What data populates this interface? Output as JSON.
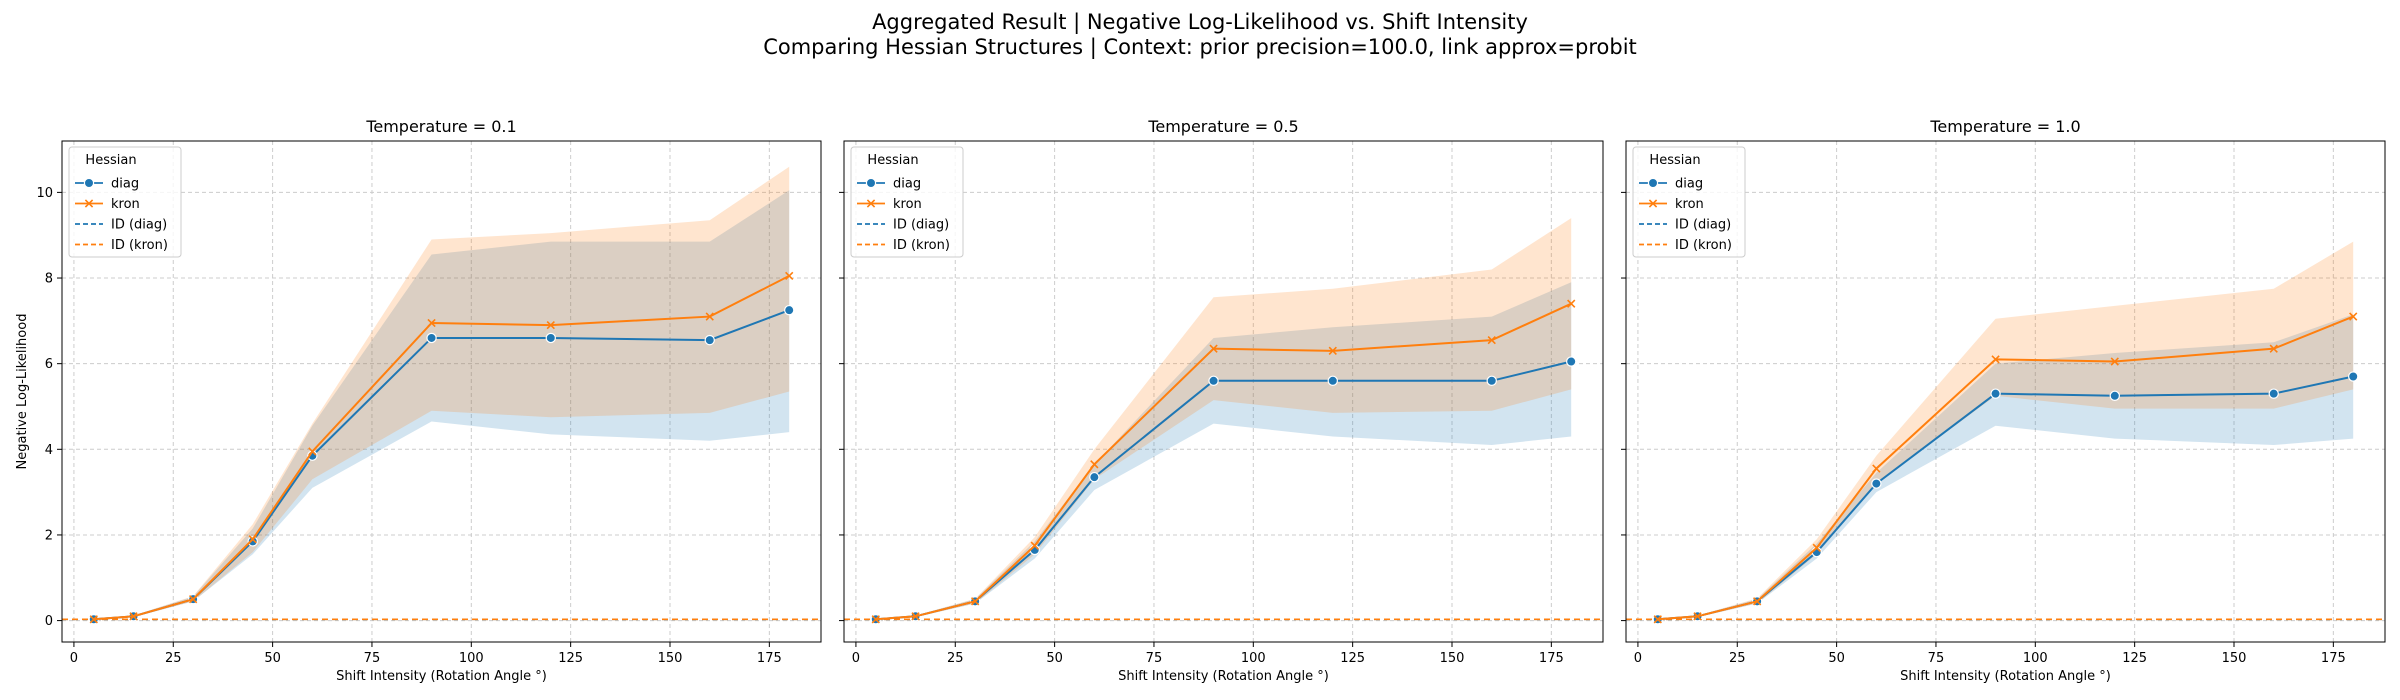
{
  "figure": {
    "title_line1": "Aggregated Result | Negative Log-Likelihood vs. Shift Intensity",
    "title_line2": "Comparing Hessian Structures | Context: prior precision=100.0, link approx=probit"
  },
  "colors": {
    "diag": "#1f77b4",
    "kron": "#ff7f0e",
    "grid": "#cccccc",
    "axes": "#000000"
  },
  "chart_data": [
    {
      "type": "line",
      "title": "Temperature = 0.1",
      "xlabel": "Shift Intensity (Rotation Angle °)",
      "ylabel": "Negative Log-Likelihood",
      "xlim": [
        -3,
        188
      ],
      "ylim": [
        -0.5,
        11.2
      ],
      "xticks": [
        0,
        25,
        50,
        75,
        100,
        125,
        150,
        175
      ],
      "yticks": [
        0,
        2,
        4,
        6,
        8,
        10
      ],
      "grid": true,
      "legend": {
        "title": "Hessian",
        "placement": "top-left",
        "entries": [
          "diag",
          "kron",
          "ID (diag)",
          "ID (kron)"
        ]
      },
      "x": [
        5,
        15,
        30,
        45,
        60,
        90,
        120,
        160,
        180
      ],
      "series": [
        {
          "name": "diag",
          "marker": "circle",
          "values": [
            0.03,
            0.1,
            0.5,
            1.85,
            3.85,
            6.6,
            6.6,
            6.55,
            7.25
          ],
          "ci_low": [
            0.02,
            0.08,
            0.45,
            1.55,
            3.1,
            4.65,
            4.35,
            4.2,
            4.4
          ],
          "ci_high": [
            0.04,
            0.12,
            0.56,
            2.15,
            4.55,
            8.55,
            8.85,
            8.85,
            10.05
          ]
        },
        {
          "name": "kron",
          "marker": "x",
          "values": [
            0.03,
            0.1,
            0.5,
            1.9,
            3.95,
            6.95,
            6.9,
            7.1,
            8.05
          ],
          "ci_low": [
            0.02,
            0.08,
            0.45,
            1.6,
            3.3,
            4.9,
            4.75,
            4.85,
            5.35
          ],
          "ci_high": [
            0.04,
            0.12,
            0.57,
            2.25,
            4.6,
            8.9,
            9.05,
            9.35,
            10.6
          ]
        }
      ],
      "id_lines": [
        {
          "name": "ID (diag)",
          "value": 0.03
        },
        {
          "name": "ID (kron)",
          "value": 0.03
        }
      ]
    },
    {
      "type": "line",
      "title": "Temperature = 0.5",
      "xlabel": "Shift Intensity (Rotation Angle °)",
      "ylabel": "",
      "xlim": [
        -3,
        188
      ],
      "ylim": [
        -0.5,
        11.2
      ],
      "xticks": [
        0,
        25,
        50,
        75,
        100,
        125,
        150,
        175
      ],
      "yticks": [
        0,
        2,
        4,
        6,
        8,
        10
      ],
      "grid": true,
      "legend": {
        "title": "Hessian",
        "placement": "top-left",
        "entries": [
          "diag",
          "kron",
          "ID (diag)",
          "ID (kron)"
        ]
      },
      "x": [
        5,
        15,
        30,
        45,
        60,
        90,
        120,
        160,
        180
      ],
      "series": [
        {
          "name": "diag",
          "marker": "circle",
          "values": [
            0.03,
            0.1,
            0.45,
            1.65,
            3.35,
            5.6,
            5.6,
            5.6,
            6.05
          ],
          "ci_low": [
            0.02,
            0.08,
            0.4,
            1.45,
            3.05,
            4.6,
            4.3,
            4.1,
            4.3
          ],
          "ci_high": [
            0.04,
            0.12,
            0.5,
            1.85,
            3.65,
            6.6,
            6.85,
            7.1,
            7.9
          ]
        },
        {
          "name": "kron",
          "marker": "x",
          "values": [
            0.03,
            0.1,
            0.45,
            1.75,
            3.65,
            6.35,
            6.3,
            6.55,
            7.4
          ],
          "ci_low": [
            0.02,
            0.08,
            0.4,
            1.55,
            3.3,
            5.15,
            4.85,
            4.9,
            5.4
          ],
          "ci_high": [
            0.04,
            0.12,
            0.51,
            1.95,
            4.0,
            7.55,
            7.75,
            8.2,
            9.4
          ]
        }
      ],
      "id_lines": [
        {
          "name": "ID (diag)",
          "value": 0.03
        },
        {
          "name": "ID (kron)",
          "value": 0.03
        }
      ]
    },
    {
      "type": "line",
      "title": "Temperature = 1.0",
      "xlabel": "Shift Intensity (Rotation Angle °)",
      "ylabel": "",
      "xlim": [
        -3,
        188
      ],
      "ylim": [
        -0.5,
        11.2
      ],
      "xticks": [
        0,
        25,
        50,
        75,
        100,
        125,
        150,
        175
      ],
      "yticks": [
        0,
        2,
        4,
        6,
        8,
        10
      ],
      "grid": true,
      "legend": {
        "title": "Hessian",
        "placement": "top-left",
        "entries": [
          "diag",
          "kron",
          "ID (diag)",
          "ID (kron)"
        ]
      },
      "x": [
        5,
        15,
        30,
        45,
        60,
        90,
        120,
        160,
        180
      ],
      "series": [
        {
          "name": "diag",
          "marker": "circle",
          "values": [
            0.03,
            0.1,
            0.45,
            1.6,
            3.2,
            5.3,
            5.25,
            5.3,
            5.7
          ],
          "ci_low": [
            0.02,
            0.08,
            0.4,
            1.45,
            3.0,
            4.55,
            4.25,
            4.1,
            4.25
          ],
          "ci_high": [
            0.04,
            0.12,
            0.5,
            1.8,
            3.45,
            6.0,
            6.25,
            6.5,
            7.15
          ]
        },
        {
          "name": "kron",
          "marker": "x",
          "values": [
            0.03,
            0.1,
            0.45,
            1.7,
            3.55,
            6.1,
            6.05,
            6.35,
            7.1
          ],
          "ci_low": [
            0.02,
            0.08,
            0.4,
            1.55,
            3.2,
            5.25,
            4.95,
            4.95,
            5.4
          ],
          "ci_high": [
            0.04,
            0.12,
            0.52,
            1.9,
            3.85,
            7.05,
            7.35,
            7.75,
            8.85
          ]
        }
      ],
      "id_lines": [
        {
          "name": "ID (diag)",
          "value": 0.03
        },
        {
          "name": "ID (kron)",
          "value": 0.03
        }
      ]
    }
  ]
}
